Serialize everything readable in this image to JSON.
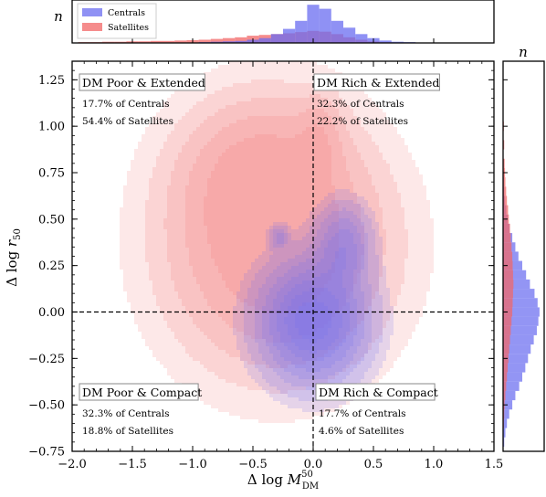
{
  "chart_data": {
    "type": "scatter",
    "subtype": "2d-kde-contour-with-marginal-histograms",
    "xlabel": "Δ log M",
    "xlabel_sup": "50",
    "xlabel_sub": "DM",
    "ylabel": "Δ log r",
    "ylabel_sub": "50",
    "xlim": [
      -2.0,
      1.5
    ],
    "ylim": [
      -0.75,
      1.35
    ],
    "x_ticks": [
      -2.0,
      -1.5,
      -1.0,
      -0.5,
      0.0,
      0.5,
      1.0,
      1.5
    ],
    "x_tick_labels": [
      "−2.0",
      "−1.5",
      "−1.0",
      "−0.5",
      "0.0",
      "0.5",
      "1.0",
      "1.5"
    ],
    "y_ticks": [
      -0.75,
      -0.5,
      -0.25,
      0.0,
      0.25,
      0.5,
      0.75,
      1.0,
      1.25
    ],
    "y_tick_labels": [
      "−0.75",
      "−0.50",
      "−0.25",
      "0.00",
      "0.25",
      "0.50",
      "0.75",
      "1.00",
      "1.25"
    ],
    "grid": false,
    "reference_lines": {
      "x": 0.0,
      "y": 0.0,
      "style": "dashed"
    },
    "top_hist_ylabel": "n",
    "right_hist_xlabel": "n",
    "series": [
      {
        "name": "Centrals",
        "color": "#6a6cf0",
        "density_center": [
          0.0,
          -0.05
        ],
        "sigma": [
          0.26,
          0.19
        ],
        "contour_levels": [
          0.04,
          0.08,
          0.16,
          0.26,
          0.38,
          0.52,
          0.68,
          0.85
        ],
        "secondary_lobes": [
          {
            "center": [
              0.25,
              0.35
            ],
            "sigma": [
              0.14,
              0.14
            ],
            "weight": 0.45
          },
          {
            "center": [
              -0.28,
              0.4
            ],
            "sigma": [
              0.05,
              0.04
            ],
            "weight": 0.28
          }
        ]
      },
      {
        "name": "Satellites",
        "color": "#f26666",
        "density_center": [
          -0.3,
          0.35
        ],
        "sigma": [
          0.55,
          0.4
        ],
        "contour_levels": [
          0.05,
          0.12,
          0.22,
          0.36,
          0.55
        ],
        "secondary_lobes": [
          {
            "center": [
              -0.45,
              0.75
            ],
            "sigma": [
              0.4,
              0.25
            ],
            "weight": 0.5
          },
          {
            "center": [
              0.05,
              0.95
            ],
            "sigma": [
              0.12,
              0.14
            ],
            "weight": 0.35
          }
        ]
      }
    ],
    "top_histogram": {
      "bins": [
        -1.9,
        -1.8,
        -1.7,
        -1.6,
        -1.5,
        -1.4,
        -1.3,
        -1.2,
        -1.1,
        -1.0,
        -0.9,
        -0.8,
        -0.7,
        -0.6,
        -0.5,
        -0.4,
        -0.3,
        -0.2,
        -0.1,
        0.0,
        0.1,
        0.2,
        0.3,
        0.4,
        0.5,
        0.6,
        0.7,
        0.8,
        0.9,
        1.0,
        1.1
      ],
      "centrals": [
        0,
        0,
        0,
        0,
        0,
        0,
        0,
        0,
        0,
        0,
        0.02,
        0.03,
        0.04,
        0.05,
        0.08,
        0.12,
        0.22,
        0.35,
        0.55,
        0.95,
        0.85,
        0.55,
        0.38,
        0.22,
        0.12,
        0.06,
        0.03,
        0.02,
        0.01,
        0,
        0
      ],
      "satellites": [
        0.02,
        0.02,
        0.03,
        0.03,
        0.04,
        0.04,
        0.05,
        0.05,
        0.06,
        0.07,
        0.08,
        0.1,
        0.12,
        0.14,
        0.18,
        0.2,
        0.22,
        0.24,
        0.27,
        0.3,
        0.28,
        0.22,
        0.14,
        0.08,
        0.04,
        0.02,
        0.01,
        0.01,
        0,
        0,
        0
      ]
    },
    "right_histogram": {
      "bins": [
        -0.7,
        -0.65,
        -0.6,
        -0.55,
        -0.5,
        -0.45,
        -0.4,
        -0.35,
        -0.3,
        -0.25,
        -0.2,
        -0.15,
        -0.1,
        -0.05,
        0.0,
        0.05,
        0.1,
        0.15,
        0.2,
        0.25,
        0.3,
        0.35,
        0.4,
        0.45,
        0.5,
        0.55,
        0.6,
        0.65,
        0.7,
        0.75,
        0.8,
        0.9,
        1.0,
        1.1,
        1.2
      ],
      "centrals": [
        0.03,
        0.06,
        0.1,
        0.16,
        0.24,
        0.32,
        0.42,
        0.5,
        0.58,
        0.65,
        0.72,
        0.8,
        0.88,
        0.92,
        0.95,
        0.9,
        0.82,
        0.7,
        0.6,
        0.5,
        0.4,
        0.32,
        0.24,
        0.17,
        0.12,
        0.08,
        0.05,
        0.03,
        0.02,
        0.01,
        0.01,
        0,
        0,
        0,
        0
      ],
      "satellites": [
        0,
        0.01,
        0.02,
        0.03,
        0.04,
        0.06,
        0.08,
        0.1,
        0.12,
        0.14,
        0.16,
        0.18,
        0.2,
        0.22,
        0.24,
        0.25,
        0.26,
        0.27,
        0.26,
        0.25,
        0.24,
        0.22,
        0.2,
        0.18,
        0.15,
        0.13,
        0.1,
        0.08,
        0.06,
        0.05,
        0.04,
        0.03,
        0.02,
        0.01,
        0.01
      ]
    },
    "quadrants": [
      {
        "id": "tl",
        "title": "DM Poor & Extended",
        "lines": [
          "17.7% of Centrals",
          "54.4% of Satellites"
        ]
      },
      {
        "id": "tr",
        "title": "DM Rich & Extended",
        "lines": [
          "32.3% of Centrals",
          "22.2% of Satellites"
        ]
      },
      {
        "id": "bl",
        "title": "DM Poor & Compact",
        "lines": [
          "32.3% of Centrals",
          "18.8% of Satellites"
        ]
      },
      {
        "id": "br",
        "title": "DM Rich & Compact",
        "lines": [
          "17.7% of Centrals",
          "4.6% of Satellites"
        ]
      }
    ]
  }
}
